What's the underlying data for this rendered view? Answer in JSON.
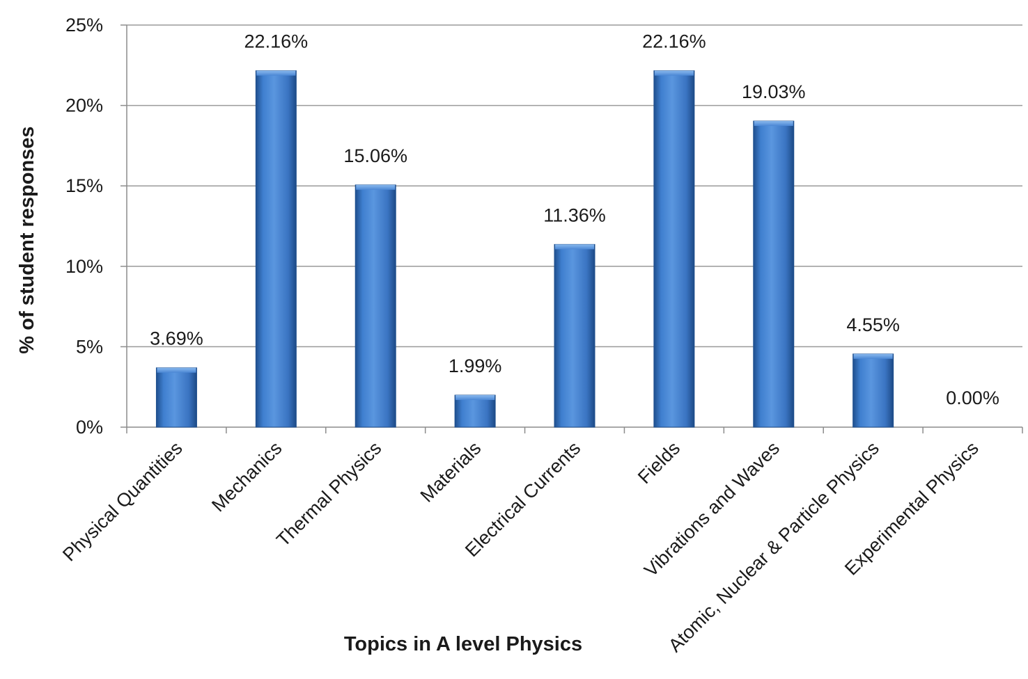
{
  "chart_data": {
    "type": "bar",
    "xlabel": "Topics in A level Physics",
    "ylabel": "% of student responses",
    "ylim": [
      0,
      25
    ],
    "yticks": [
      0,
      5,
      10,
      15,
      20,
      25
    ],
    "ytick_labels": [
      "0%",
      "5%",
      "10%",
      "15%",
      "20%",
      "25%"
    ],
    "grid": true,
    "categories": [
      "Physical Quantities",
      "Mechanics",
      "Thermal Physics",
      "Materials",
      "Electrical Currents",
      "Fields",
      "Vibrations and Waves",
      "Atomic, Nuclear & Particle Physics",
      "Experimental Physics"
    ],
    "values": [
      3.69,
      22.16,
      15.06,
      1.99,
      11.36,
      22.16,
      19.03,
      4.55,
      0.0
    ],
    "data_labels": [
      "3.69%",
      "22.16%",
      "15.06%",
      "1.99%",
      "11.36%",
      "22.16%",
      "19.03%",
      "4.55%",
      "0.00%"
    ],
    "colors": {
      "bar": "#3a78c9",
      "bar_dark": "#1f4f8e",
      "bar_light": "#6fa6e6",
      "grid": "#9a9a9a",
      "axis": "#8c8c8c"
    }
  }
}
